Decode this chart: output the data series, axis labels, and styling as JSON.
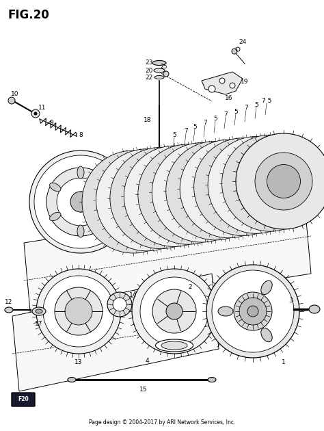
{
  "title": "FIG.20",
  "footer": "Page design © 2004-2017 by ARI Network Services, Inc.",
  "bg_color": "#ffffff",
  "line_color": "#000000",
  "fig_width": 4.74,
  "fig_height": 6.3,
  "dpi": 100
}
